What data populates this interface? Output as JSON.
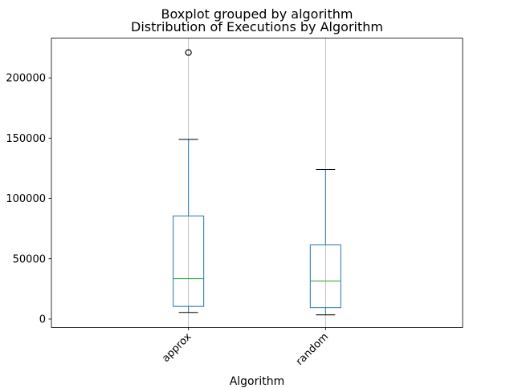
{
  "chart_data": {
    "type": "box",
    "suptitle": "Boxplot grouped by algorithm",
    "title": "Distribution of Executions by Algorithm",
    "xlabel": "Algorithm",
    "ylabel": "",
    "ylim": [
      -7000,
      233000
    ],
    "yticks": [
      0,
      50000,
      100000,
      150000,
      200000
    ],
    "ytick_labels": [
      "0",
      "50000",
      "100000",
      "150000",
      "200000"
    ],
    "grid": true,
    "xtick_rotation": 45,
    "categories": [
      "approx",
      "random"
    ],
    "boxes": [
      {
        "name": "approx",
        "whisker_low": 5500,
        "q1": 10500,
        "median": 33500,
        "q3": 85500,
        "whisker_high": 149000,
        "outliers": [
          221000,
          221000
        ]
      },
      {
        "name": "random",
        "whisker_low": 3500,
        "q1": 9500,
        "median": 31500,
        "q3": 61500,
        "whisker_high": 124000,
        "outliers": []
      }
    ],
    "colors": {
      "box": "#1f77b4",
      "median": "#2ca02c",
      "grid": "#b0b0b0",
      "axes": "#000000"
    }
  }
}
